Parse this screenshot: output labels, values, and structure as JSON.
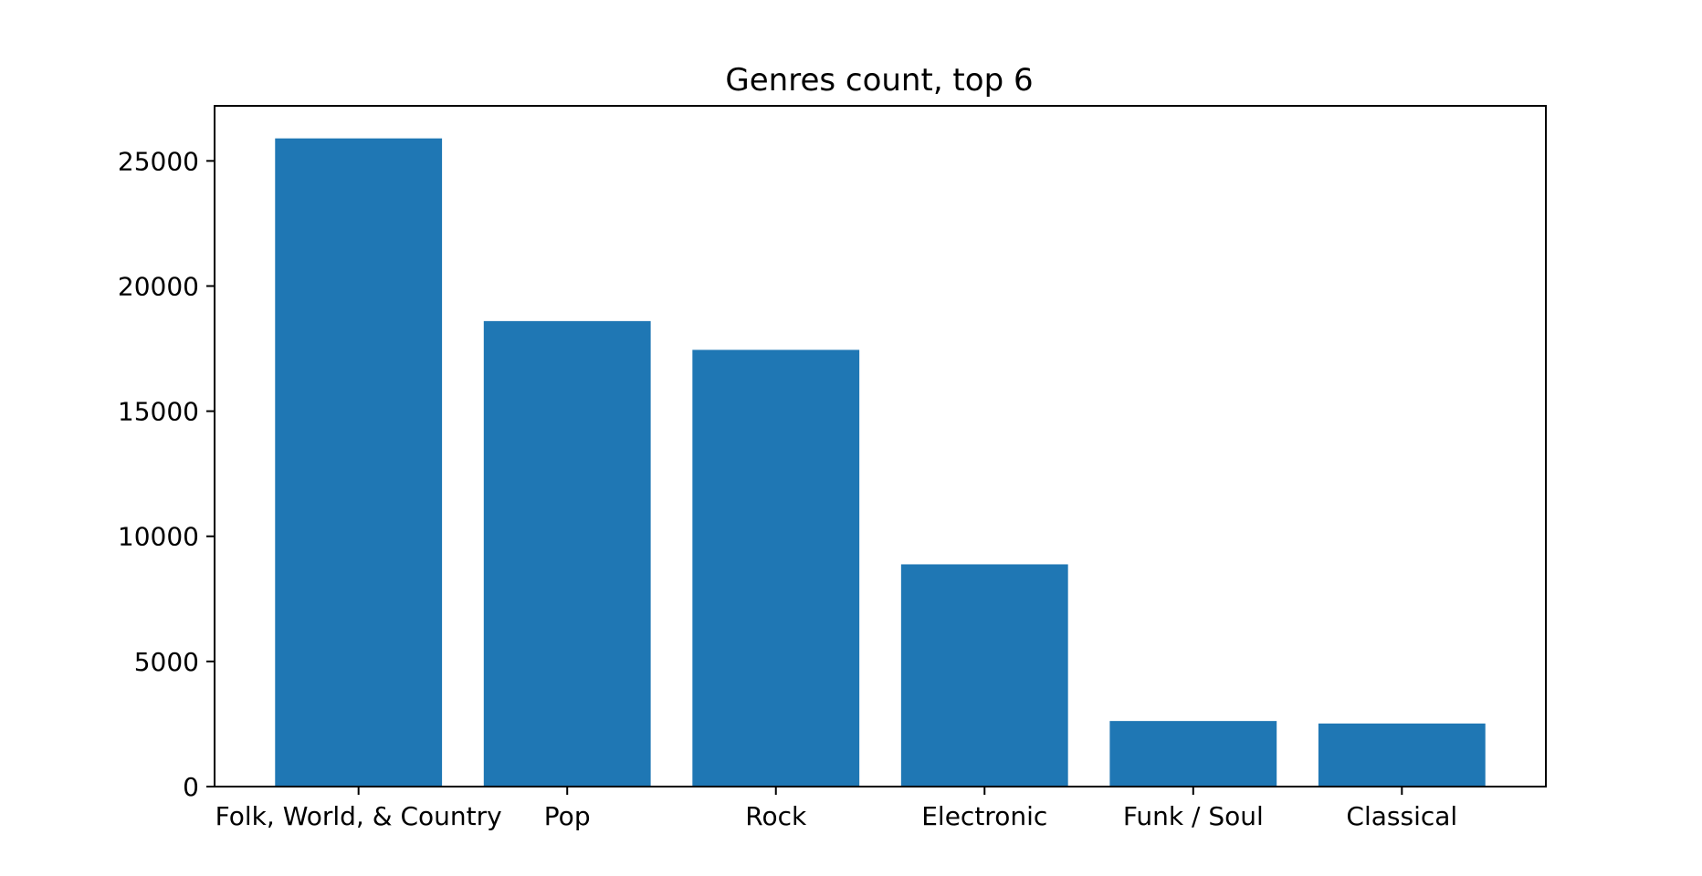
{
  "chart_data": {
    "type": "bar",
    "title": "Genres count, top 6",
    "xlabel": "",
    "ylabel": "",
    "categories": [
      "Folk, World, & Country",
      "Pop",
      "Rock",
      "Electronic",
      "Funk / Soul",
      "Classical"
    ],
    "values": [
      25900,
      18600,
      17450,
      8880,
      2620,
      2520
    ],
    "ylim": [
      0,
      27200
    ],
    "yticks": [
      0,
      5000,
      10000,
      15000,
      20000,
      25000
    ],
    "ytick_labels": [
      "0",
      "5000",
      "10000",
      "15000",
      "20000",
      "25000"
    ],
    "grid": false,
    "bar_color": "#1f77b4"
  }
}
